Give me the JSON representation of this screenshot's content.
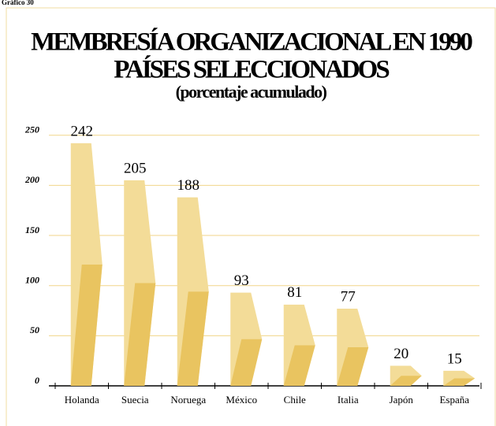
{
  "chart_data": {
    "type": "bar",
    "label": "Gráfico 30",
    "title": "MEMBRESÍA ORGANIZACIONAL EN 1990",
    "subtitle": "PAÍSES SELECCIONADOS",
    "note": "(porcentaje acumulado)",
    "categories": [
      "Holanda",
      "Suecia",
      "Noruega",
      "México",
      "Chile",
      "Italia",
      "Japón",
      "España"
    ],
    "values": [
      242,
      205,
      188,
      93,
      81,
      77,
      20,
      15
    ],
    "color": "#f3dc98",
    "ylim": [
      0,
      260
    ],
    "yticks": [
      0,
      50,
      100,
      150,
      200,
      250
    ],
    "grid": true
  }
}
